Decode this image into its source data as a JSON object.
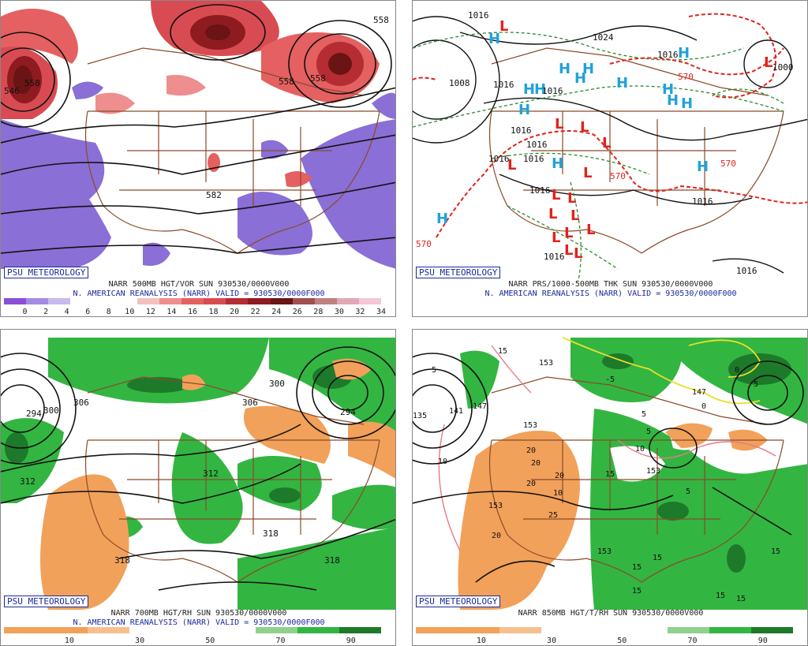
{
  "brand": "PSU METEOROLOGY",
  "colors": {
    "vort_pos": "#d94b52",
    "vort_dark": "#7a1515",
    "vort_neg": "#8a6fd6",
    "rh_dry": "#f2a15a",
    "rh_moist": "#33b542",
    "rh_dark": "#1d7a2a",
    "high": "#1fa3d9",
    "low": "#e0231c",
    "border": "#8b4a2a",
    "thick": "#e0231c",
    "isobar_dash": "#2a8a2a"
  },
  "panels": [
    {
      "id": "tl",
      "title1": "NARR 500MB HGT/VOR SUN 930530/0000V000",
      "title2": "N. AMERICAN REANALYSIS (NARR) VALID = 930530/0000F000",
      "colorbar": [
        "#8a4fd6",
        "#a58ae2",
        "#c8b9ee",
        "#ffffff",
        "#ffffff",
        "#ffffff",
        "#f3c0c0",
        "#ee8e8e",
        "#e56060",
        "#d94b52",
        "#b52d33",
        "#8e1b1f",
        "#6a1414",
        "#a05050",
        "#c08080",
        "#e0a8b8",
        "#f3c8d8"
      ],
      "ticks": [
        "0",
        "2",
        "4",
        "6",
        "8",
        "10",
        "12",
        "14",
        "16",
        "18",
        "20",
        "22",
        "24",
        "26",
        "28",
        "30",
        "32",
        "34"
      ],
      "labels": [
        "546",
        "558",
        "558",
        "558",
        "582",
        "558"
      ]
    },
    {
      "id": "tr",
      "title1": "NARR PRS/1000-500MB THK SUN 930530/0000V000",
      "title2": "N. AMERICAN REANALYSIS (NARR) VALID = 930530/0000F000",
      "highs": [
        "H",
        "H",
        "H",
        "H",
        "H",
        "H",
        "H",
        "H",
        "H",
        "H",
        "H",
        "H",
        "H",
        "H",
        "H"
      ],
      "lows": [
        "L",
        "L",
        "L",
        "L",
        "L",
        "L",
        "L",
        "L",
        "L",
        "L",
        "L",
        "L",
        "L",
        "L",
        "L",
        "L"
      ],
      "labels": [
        "1016",
        "1024",
        "1016",
        "1008",
        "1016",
        "1016",
        "1016",
        "1016",
        "1016",
        "1016",
        "1016",
        "1016",
        "570",
        "570",
        "570",
        "570",
        "1000",
        "1016",
        "1016"
      ]
    },
    {
      "id": "bl",
      "title1": "NARR 700MB HGT/RH SUN 930530/0000V000",
      "title2": "N. AMERICAN REANALYSIS (NARR) VALID = 930530/0000F000",
      "colorbar": [
        "#f2a15a",
        "#f2a15a",
        "#f6c08e",
        "#ffffff",
        "#ffffff",
        "#ffffff",
        "#8fd08f",
        "#33b542",
        "#1d7a2a"
      ],
      "ticks": [
        "10",
        "30",
        "50",
        "70",
        "90"
      ],
      "labels": [
        "294",
        "300",
        "306",
        "312",
        "300",
        "306",
        "294",
        "312",
        "318",
        "318",
        "318"
      ]
    },
    {
      "id": "br",
      "title1": "NARR 850MB HGT/T/RH SUN 930530/0000V000",
      "title2": "",
      "colorbar": [
        "#f2a15a",
        "#f2a15a",
        "#f6c08e",
        "#ffffff",
        "#ffffff",
        "#ffffff",
        "#8fd08f",
        "#33b542",
        "#1d7a2a"
      ],
      "ticks": [
        "10",
        "30",
        "50",
        "70",
        "90"
      ],
      "boxes": [
        "15",
        "5",
        "153",
        "135",
        "141",
        "147",
        "-5",
        "5",
        "5",
        "10",
        "153",
        "147",
        "0",
        "5",
        "0",
        "20",
        "20",
        "20",
        "20",
        "25",
        "10",
        "15",
        "153",
        "153",
        "20",
        "153",
        "15",
        "15",
        "15",
        "15",
        "15",
        "15",
        "10",
        "5"
      ]
    }
  ]
}
